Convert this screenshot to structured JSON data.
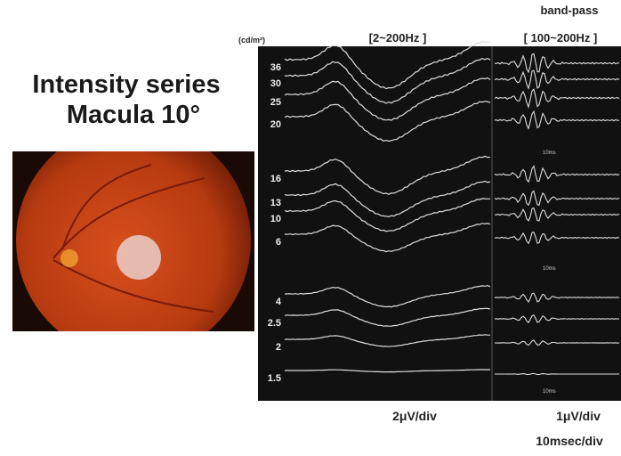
{
  "title": {
    "line1": "Intensity series",
    "line2": "Macula 10°"
  },
  "unit": "(cd/m²)",
  "headers": {
    "broadband": "[2~200Hz ]",
    "bandpass_title": "band-pass",
    "bandpass": "[ 100~200Hz ]"
  },
  "intensities": [
    "36",
    "30",
    "25",
    "20",
    "16",
    "13",
    "10",
    "6",
    "4",
    "2.5",
    "2",
    "1.5"
  ],
  "time_markers": [
    "10ms",
    "10ms",
    "10ms"
  ],
  "scales": {
    "left": "2μV/div",
    "right": "1μV/div",
    "time": "10msec/div"
  }
}
